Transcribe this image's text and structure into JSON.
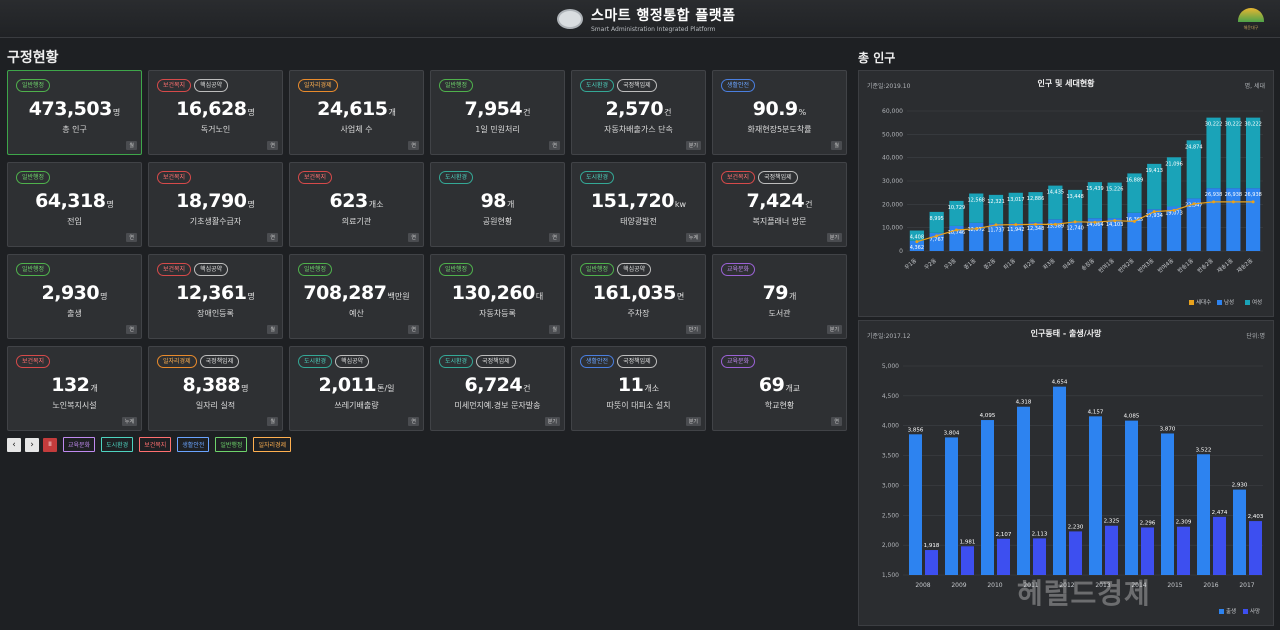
{
  "header": {
    "title": "스마트 행정통합 플랫폼",
    "subtitle": "Smart Administration Integrated Platform",
    "org_name": "해운대구"
  },
  "left_section_title": "구정현황",
  "right_section_title": "총 인구",
  "cards": [
    {
      "tags": [
        {
          "text": "일반행정",
          "color": "green"
        }
      ],
      "value": "473,503",
      "unit": "명",
      "label": "총 인구",
      "period": "월",
      "active": true
    },
    {
      "tags": [
        {
          "text": "보건복지",
          "color": "red"
        },
        {
          "text": "핵심공약",
          "color": "white"
        }
      ],
      "value": "16,628",
      "unit": "명",
      "label": "독거노인",
      "period": "연"
    },
    {
      "tags": [
        {
          "text": "일자리경제",
          "color": "orange"
        }
      ],
      "value": "24,615",
      "unit": "개",
      "label": "사업체 수",
      "period": "연"
    },
    {
      "tags": [
        {
          "text": "일반행정",
          "color": "green"
        }
      ],
      "value": "7,954",
      "unit": "건",
      "label": "1일 민원처리",
      "period": "연"
    },
    {
      "tags": [
        {
          "text": "도시환경",
          "color": "teal"
        },
        {
          "text": "국정책임제",
          "color": "white"
        }
      ],
      "value": "2,570",
      "unit": "건",
      "label": "자동차배출가스 단속",
      "period": "분기"
    },
    {
      "tags": [
        {
          "text": "생활안전",
          "color": "blue"
        }
      ],
      "value": "90.9",
      "unit": "%",
      "label": "화재현장5분도착률",
      "period": "월"
    },
    {
      "tags": [
        {
          "text": "일반행정",
          "color": "green"
        }
      ],
      "value": "64,318",
      "unit": "명",
      "label": "전입",
      "period": "연"
    },
    {
      "tags": [
        {
          "text": "보건복지",
          "color": "red"
        }
      ],
      "value": "18,790",
      "unit": "명",
      "label": "기초생활수급자",
      "period": "연"
    },
    {
      "tags": [
        {
          "text": "보건복지",
          "color": "red"
        }
      ],
      "value": "623",
      "unit": "개소",
      "label": "의료기관",
      "period": "연"
    },
    {
      "tags": [
        {
          "text": "도시환경",
          "color": "teal"
        }
      ],
      "value": "98",
      "unit": "개",
      "label": "공원현황",
      "period": "연"
    },
    {
      "tags": [
        {
          "text": "도시환경",
          "color": "teal"
        }
      ],
      "value": "151,720",
      "unit": "kw",
      "label": "태양광발전",
      "period": "누계"
    },
    {
      "tags": [
        {
          "text": "보건복지",
          "color": "red"
        },
        {
          "text": "국정책임제",
          "color": "white"
        }
      ],
      "value": "7,424",
      "unit": "건",
      "label": "복지플래너 방문",
      "period": "분기"
    },
    {
      "tags": [
        {
          "text": "일반행정",
          "color": "green"
        }
      ],
      "value": "2,930",
      "unit": "명",
      "label": "출생",
      "period": "연"
    },
    {
      "tags": [
        {
          "text": "보건복지",
          "color": "red"
        },
        {
          "text": "핵심공약",
          "color": "white"
        }
      ],
      "value": "12,361",
      "unit": "명",
      "label": "장애인등록",
      "period": "월"
    },
    {
      "tags": [
        {
          "text": "일반행정",
          "color": "green"
        }
      ],
      "value": "708,287",
      "unit": "백만원",
      "label": "예산",
      "period": "연"
    },
    {
      "tags": [
        {
          "text": "일반행정",
          "color": "green"
        }
      ],
      "value": "130,260",
      "unit": "대",
      "label": "자동차등록",
      "period": "월"
    },
    {
      "tags": [
        {
          "text": "일반행정",
          "color": "green"
        },
        {
          "text": "핵심공약",
          "color": "white"
        }
      ],
      "value": "161,035",
      "unit": "면",
      "label": "주차장",
      "period": "반기"
    },
    {
      "tags": [
        {
          "text": "교육문화",
          "color": "purple"
        }
      ],
      "value": "79",
      "unit": "개",
      "label": "도서관",
      "period": "분기"
    },
    {
      "tags": [
        {
          "text": "보건복지",
          "color": "red"
        }
      ],
      "value": "132",
      "unit": "개",
      "label": "노인복지시설",
      "period": "누계"
    },
    {
      "tags": [
        {
          "text": "일자리경제",
          "color": "orange"
        },
        {
          "text": "국정책임제",
          "color": "white"
        }
      ],
      "value": "8,388",
      "unit": "명",
      "label": "일자리 실적",
      "period": "월"
    },
    {
      "tags": [
        {
          "text": "도시환경",
          "color": "teal"
        },
        {
          "text": "핵심공약",
          "color": "white"
        }
      ],
      "value": "2,011",
      "unit": "톤/일",
      "label": "쓰레기배출량",
      "period": "연"
    },
    {
      "tags": [
        {
          "text": "도시환경",
          "color": "teal"
        },
        {
          "text": "국정책임제",
          "color": "white"
        }
      ],
      "value": "6,724",
      "unit": "건",
      "label": "미세먼지예.경보 문자발송",
      "period": "분기"
    },
    {
      "tags": [
        {
          "text": "생활안전",
          "color": "blue"
        },
        {
          "text": "국정책임제",
          "color": "white"
        }
      ],
      "value": "11",
      "unit": "개소",
      "label": "따뜻이 대피소 설치",
      "period": "분기"
    },
    {
      "tags": [
        {
          "text": "교육문화",
          "color": "purple"
        }
      ],
      "value": "69",
      "unit": "개교",
      "label": "학교현황",
      "period": "연"
    }
  ],
  "pager": {
    "prev": "‹",
    "next": "›",
    "stop": "II",
    "filters": [
      {
        "text": "교육문화",
        "color": "purple"
      },
      {
        "text": "도시환경",
        "color": "teal"
      },
      {
        "text": "보건복지",
        "color": "red"
      },
      {
        "text": "생활안전",
        "color": "blue"
      },
      {
        "text": "일반행정",
        "color": "green"
      },
      {
        "text": "일자리경제",
        "color": "orange"
      }
    ]
  },
  "colors": {
    "green": "#4fb14c",
    "red": "#d64a4a",
    "orange": "#e98b2c",
    "teal": "#34a896",
    "blue": "#4a7fe0",
    "purple": "#9b62d6",
    "white": "#bdbdbd",
    "households": "#e8a21d",
    "male": "#2d83f0",
    "female": "#1aa3b8",
    "births": "#2d83f0",
    "deaths": "#3d4ff0"
  },
  "population_panel": {
    "asof": "기준일:2019.10",
    "title": "인구 및 세대현황",
    "unit": "명, 세대"
  },
  "vital_panel": {
    "asof": "기준일:2017.12",
    "title": "인구동태 - 출생/사망",
    "unit": "단위:명"
  },
  "watermark": "헤럴드경제",
  "chart_data": [
    {
      "type": "bar",
      "stacked": true,
      "title": "인구 및 세대현황",
      "categories": [
        "우1동",
        "우2동",
        "우3동",
        "중1동",
        "중2동",
        "좌1동",
        "좌2동",
        "좌3동",
        "좌4동",
        "송정동",
        "반여1동",
        "반여2동",
        "반여3동",
        "반여4동",
        "반송1동",
        "반송2동",
        "재송1동",
        "재송2동"
      ],
      "series": [
        {
          "name": "남성",
          "type": "bar",
          "values": [
            4362,
            7767,
            10746,
            12072,
            11737,
            11942,
            12348,
            13589,
            12740,
            14064,
            14103,
            16365,
            17934,
            19073,
            22547,
            26938,
            26938,
            26938
          ]
        },
        {
          "name": "여성",
          "type": "bar",
          "values": [
            4408,
            8995,
            10729,
            12568,
            12321,
            13017,
            12886,
            14435,
            13448,
            15439,
            15226,
            16889,
            19413,
            21096,
            24874,
            30222,
            30222,
            30222
          ]
        },
        {
          "name": "세대수",
          "type": "line",
          "values": [
            4000,
            6500,
            8999,
            9554,
            11171,
            11300,
            11400,
            11402,
            12500,
            12340,
            13000,
            12692,
            16888,
            17413,
            20175,
            21048,
            21048,
            21048
          ]
        }
      ],
      "legend": [
        "세대수",
        "남성",
        "여성"
      ],
      "ylim": [
        0,
        60000
      ],
      "yticks": [
        0,
        10000,
        20000,
        30000,
        40000,
        50000,
        60000
      ],
      "legend_position": "bottom-right"
    },
    {
      "type": "bar",
      "title": "인구동태 - 출생/사망",
      "categories": [
        "2008",
        "2009",
        "2010",
        "2011",
        "2012",
        "2013",
        "2014",
        "2015",
        "2016",
        "2017"
      ],
      "series": [
        {
          "name": "출생",
          "values": [
            3856,
            3804,
            4095,
            4318,
            4654,
            4157,
            4085,
            3870,
            3522,
            2930
          ]
        },
        {
          "name": "사망",
          "values": [
            1918,
            1981,
            2107,
            2113,
            2230,
            2325,
            2296,
            2309,
            2474,
            2403
          ]
        }
      ],
      "legend": [
        "출생",
        "사망"
      ],
      "ylim": [
        1500,
        5000
      ],
      "yticks": [
        1500,
        2000,
        2500,
        3000,
        3500,
        4000,
        4500,
        5000
      ],
      "legend_position": "bottom-right"
    }
  ]
}
